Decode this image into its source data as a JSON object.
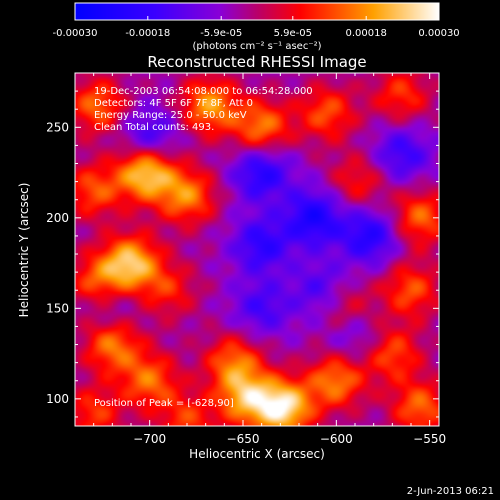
{
  "chart_data": {
    "type": "heatmap",
    "title": "Reconstructed RHESSI Image",
    "xlabel": "Heliocentric X (arcsec)",
    "ylabel": "Heliocentric Y (arcsec)",
    "xlim": [
      -740,
      -545
    ],
    "ylim": [
      85,
      280
    ],
    "x_ticks": [
      -700,
      -650,
      -600,
      -550
    ],
    "y_ticks": [
      100,
      150,
      200,
      250
    ],
    "colorbar": {
      "range": [
        -0.0003,
        0.0003
      ],
      "ticks": [
        "-0.00030",
        "-0.00018",
        "-5.9e-05",
        "5.9e-05",
        "0.00018",
        "0.00030"
      ],
      "tick_values": [
        -0.0003,
        -0.00018,
        -5.9e-05,
        5.9e-05,
        0.00018,
        0.0003
      ],
      "unit_label": "(photons cm⁻² s⁻¹ asec⁻²)"
    },
    "annotations": {
      "line1": "19-Dec-2003 06:54:08.000 to 06:54:28.000",
      "line2": "Detectors: 4F 5F 6F 7F 8F, Att 0",
      "line3": "Energy Range: 25.0 - 50.0 keV",
      "line4": "Clean    Total counts: 493.",
      "peak": "Position of Peak = [-628,90]"
    },
    "blobs": [
      {
        "x": -728,
        "y": 262,
        "v": 0.00018
      },
      {
        "x": -668,
        "y": 262,
        "v": 0.00022
      },
      {
        "x": -640,
        "y": 250,
        "v": 0.0002
      },
      {
        "x": -605,
        "y": 258,
        "v": 0.00016
      },
      {
        "x": -565,
        "y": 268,
        "v": 0.00014
      },
      {
        "x": -702,
        "y": 225,
        "v": 0.00028
      },
      {
        "x": -730,
        "y": 215,
        "v": 0.00016
      },
      {
        "x": -680,
        "y": 212,
        "v": 0.0002
      },
      {
        "x": -588,
        "y": 220,
        "v": 0.00012
      },
      {
        "x": -555,
        "y": 200,
        "v": 0.00018
      },
      {
        "x": -710,
        "y": 175,
        "v": 0.00026
      },
      {
        "x": -728,
        "y": 165,
        "v": 0.00016
      },
      {
        "x": -690,
        "y": 160,
        "v": 0.00012
      },
      {
        "x": -560,
        "y": 160,
        "v": 0.00016
      },
      {
        "x": -595,
        "y": 150,
        "v": 0.00012
      },
      {
        "x": -720,
        "y": 130,
        "v": 0.0002
      },
      {
        "x": -700,
        "y": 110,
        "v": 0.00018
      },
      {
        "x": -655,
        "y": 120,
        "v": 0.00018
      },
      {
        "x": -628,
        "y": 95,
        "v": 0.0003
      },
      {
        "x": -648,
        "y": 100,
        "v": 0.00022
      },
      {
        "x": -600,
        "y": 110,
        "v": 0.0002
      },
      {
        "x": -570,
        "y": 125,
        "v": 0.00016
      },
      {
        "x": -555,
        "y": 95,
        "v": 0.00018
      },
      {
        "x": -730,
        "y": 92,
        "v": 0.00014
      },
      {
        "x": -680,
        "y": 88,
        "v": 0.00014
      },
      {
        "x": -640,
        "y": 225,
        "v": -0.00018
      },
      {
        "x": -612,
        "y": 200,
        "v": -0.0002
      },
      {
        "x": -640,
        "y": 185,
        "v": -0.00016
      },
      {
        "x": -582,
        "y": 190,
        "v": -0.00018
      },
      {
        "x": -565,
        "y": 235,
        "v": -0.00014
      },
      {
        "x": -608,
        "y": 160,
        "v": -0.00012
      },
      {
        "x": -640,
        "y": 150,
        "v": -0.00012
      },
      {
        "x": -700,
        "y": 245,
        "v": -0.00014
      },
      {
        "x": -590,
        "y": 135,
        "v": -0.0001
      },
      {
        "x": -720,
        "y": 150,
        "v": -8e-05
      }
    ]
  },
  "footer": {
    "date": "2-Jun-2013 06:21"
  }
}
